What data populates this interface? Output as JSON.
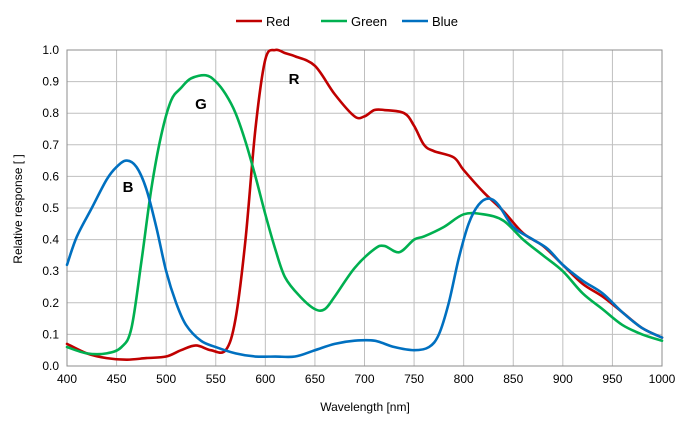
{
  "chart_data": {
    "type": "line",
    "xlabel": "Wavelength [nm]",
    "ylabel": "Relative response [ ]",
    "xlim": [
      400,
      1000
    ],
    "ylim": [
      0,
      1.0
    ],
    "x_ticks": [
      "400",
      "450",
      "500",
      "550",
      "600",
      "650",
      "700",
      "750",
      "800",
      "850",
      "900",
      "950",
      "1000"
    ],
    "y_ticks": [
      "0.0",
      "0.1",
      "0.2",
      "0.3",
      "0.4",
      "0.5",
      "0.6",
      "0.7",
      "0.8",
      "0.9",
      "1.0"
    ],
    "grid": true,
    "legend_position": "top",
    "annotations": [
      "R",
      "G",
      "B"
    ],
    "series": [
      {
        "name": "Red",
        "color": "#c00000",
        "x": [
          400,
          420,
          440,
          460,
          480,
          500,
          515,
          530,
          545,
          560,
          570,
          580,
          590,
          600,
          610,
          620,
          630,
          650,
          670,
          690,
          700,
          710,
          720,
          740,
          750,
          760,
          770,
          790,
          800,
          820,
          840,
          860,
          880,
          900,
          920,
          940,
          960,
          980,
          1000
        ],
        "y": [
          0.07,
          0.04,
          0.025,
          0.02,
          0.025,
          0.03,
          0.05,
          0.065,
          0.05,
          0.05,
          0.15,
          0.4,
          0.75,
          0.97,
          1.0,
          0.99,
          0.98,
          0.95,
          0.86,
          0.79,
          0.79,
          0.81,
          0.81,
          0.8,
          0.76,
          0.7,
          0.68,
          0.66,
          0.62,
          0.55,
          0.49,
          0.42,
          0.38,
          0.32,
          0.26,
          0.22,
          0.17,
          0.12,
          0.09
        ]
      },
      {
        "name": "Green",
        "color": "#00b050",
        "x": [
          400,
          420,
          440,
          455,
          465,
          475,
          485,
          495,
          505,
          515,
          525,
          540,
          550,
          560,
          570,
          580,
          590,
          600,
          610,
          620,
          635,
          650,
          660,
          670,
          690,
          710,
          720,
          735,
          750,
          760,
          780,
          800,
          820,
          840,
          860,
          880,
          900,
          920,
          940,
          960,
          980,
          1000
        ],
        "y": [
          0.06,
          0.04,
          0.04,
          0.06,
          0.12,
          0.33,
          0.56,
          0.73,
          0.84,
          0.88,
          0.91,
          0.92,
          0.9,
          0.86,
          0.8,
          0.71,
          0.6,
          0.48,
          0.37,
          0.28,
          0.22,
          0.18,
          0.18,
          0.22,
          0.31,
          0.37,
          0.38,
          0.36,
          0.4,
          0.41,
          0.44,
          0.48,
          0.48,
          0.46,
          0.4,
          0.35,
          0.3,
          0.23,
          0.18,
          0.13,
          0.1,
          0.08
        ]
      },
      {
        "name": "Blue",
        "color": "#0070c0",
        "x": [
          400,
          410,
          425,
          440,
          450,
          460,
          470,
          480,
          490,
          500,
          510,
          520,
          535,
          550,
          570,
          590,
          610,
          630,
          650,
          670,
          690,
          710,
          730,
          750,
          765,
          775,
          785,
          795,
          805,
          815,
          825,
          835,
          850,
          870,
          885,
          900,
          920,
          940,
          960,
          980,
          1000
        ],
        "y": [
          0.32,
          0.41,
          0.5,
          0.59,
          0.63,
          0.65,
          0.63,
          0.56,
          0.44,
          0.3,
          0.2,
          0.13,
          0.08,
          0.06,
          0.04,
          0.03,
          0.03,
          0.03,
          0.05,
          0.07,
          0.08,
          0.08,
          0.06,
          0.05,
          0.06,
          0.1,
          0.2,
          0.34,
          0.45,
          0.51,
          0.53,
          0.51,
          0.44,
          0.4,
          0.37,
          0.32,
          0.27,
          0.23,
          0.17,
          0.12,
          0.09
        ]
      }
    ]
  }
}
